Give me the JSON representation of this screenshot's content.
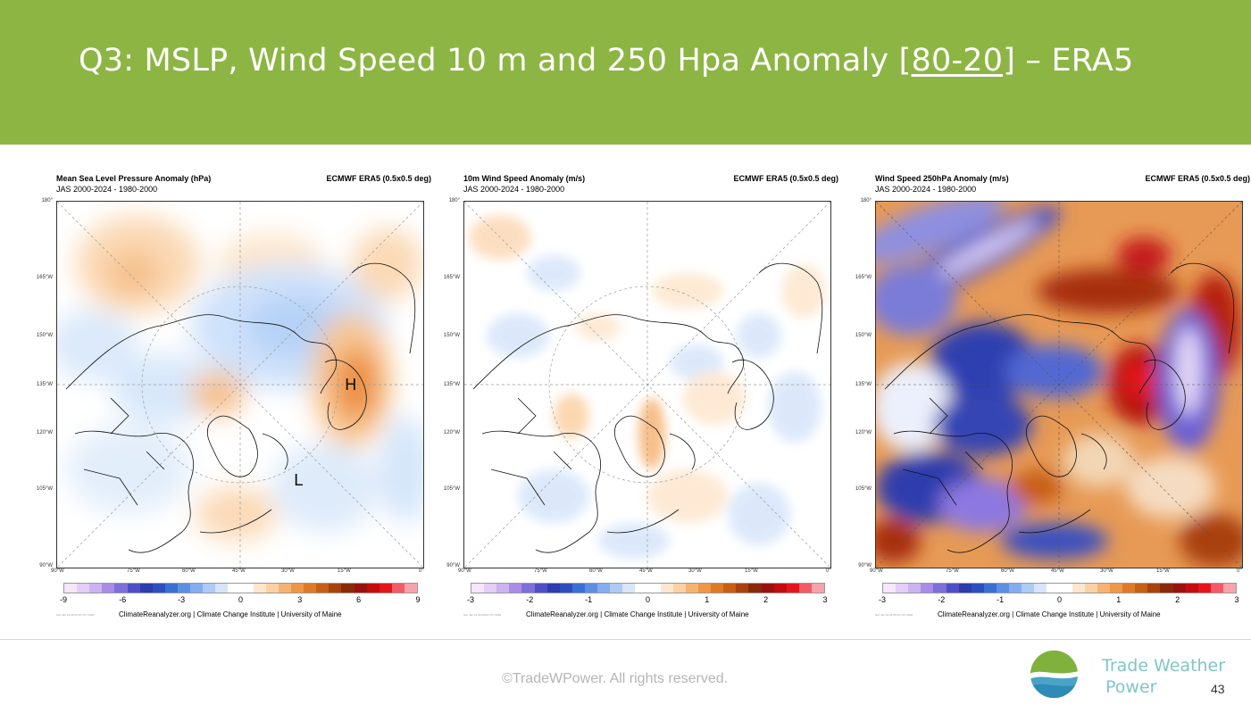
{
  "slide": {
    "title_pre": "Q3: MSLP, Wind Speed 10 m and 250 Hpa Anomaly ",
    "title_link": "[80-20]",
    "title_post": " – ERA5",
    "footer": "©TradeWPower. All rights reserved.",
    "brand_line1": "Trade Weather",
    "brand_line2": "Power",
    "page_number": "43"
  },
  "colors": {
    "header_bg": "#8db543",
    "brand": "#7fc6c6"
  },
  "panels": [
    {
      "title": "Mean Sea Level Pressure Anomaly (hPa)",
      "subtitle": "JAS 2000-2024 - 1980-2000",
      "source": "ECMWF ERA5 (0.5x0.5 deg)",
      "colorbar_ticks": [
        "-9",
        "-6",
        "-3",
        "0",
        "3",
        "6",
        "9"
      ],
      "credit": "ClimateReanalyzer.org | Climate Change Institute | University of Maine",
      "stamp": "Sun Jan 19 18:04:16 UTC 2025",
      "markers": [
        "H",
        "L"
      ]
    },
    {
      "title": "10m Wind Speed Anomaly (m/s)",
      "subtitle": "JAS 2000-2024 - 1980-2000",
      "source": "ECMWF ERA5 (0.5x0.5 deg)",
      "colorbar_ticks": [
        "-3",
        "-2",
        "-1",
        "0",
        "1",
        "2",
        "3"
      ],
      "credit": "ClimateReanalyzer.org | Climate Change Institute | University of Maine",
      "stamp": "Sun Jan 19 18:09:06 UTC 2025",
      "markers": []
    },
    {
      "title": "Wind Speed 250hPa Anomaly (m/s)",
      "subtitle": "JAS 2000-2024 - 1980-2000",
      "source": "ECMWF ERA5 (0.5x0.5 deg)",
      "colorbar_ticks": [
        "-3",
        "-2",
        "-1",
        "0",
        "1",
        "2",
        "3"
      ],
      "credit": "ClimateReanalyzer.org | Climate Change Institute | University of Maine",
      "stamp": "Sun Jan 19 18:06:23 UTC 2025",
      "markers": []
    }
  ],
  "axes": {
    "lat_labels": [
      "180°",
      "165°W",
      "150°W",
      "135°W",
      "120°W",
      "105°W",
      "90°W"
    ],
    "lon_labels": [
      "90°W",
      "75°W",
      "60°W",
      "45°W",
      "30°W",
      "15°W",
      "0°"
    ]
  }
}
